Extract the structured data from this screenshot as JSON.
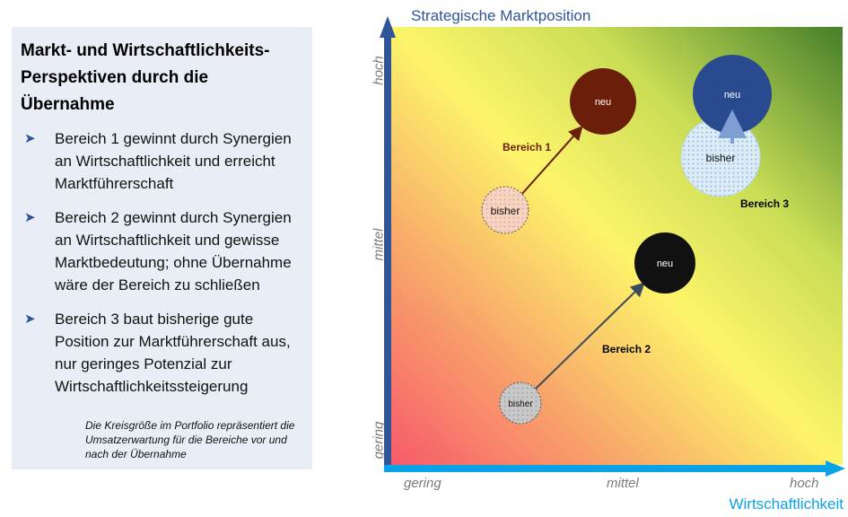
{
  "panel": {
    "title": "Markt- und Wirtschaftlichkeits-Perspektiven durch die Übernahme",
    "bullets": [
      "Bereich 1 gewinnt durch Synergien an Wirtschaftlichkeit und erreicht Marktführerschaft",
      "Bereich 2 gewinnt durch Synergien an Wirtschaftlichkeit und gewisse Marktbedeutung; ohne Übernahme wäre der Bereich zu schließen",
      "Bereich 3 baut bisherige gute Position zur Marktführerschaft aus, nur geringes Potenzial zur Wirtschaftlichkeitssteigerung"
    ],
    "note": "Die Kreisgröße im Portfolio repräsentiert die Umsatzerwartung für die Bereiche vor und nach der Übernahme",
    "bullet_icon": "arrowhead-bullet-icon"
  },
  "axes": {
    "y_title": "Strategische Marktposition",
    "x_title": "Wirtschaftlichkeit",
    "y_ticks": [
      "hoch",
      "mittel",
      "gering"
    ],
    "x_ticks": [
      "gering",
      "mittel",
      "hoch"
    ]
  },
  "colors": {
    "y_axis": "#2f5597",
    "x_axis": "#0aa3e8",
    "bereich1_neu": "#6b1f0a",
    "bereich1_bisher": "#f9d3c0",
    "bereich2_neu": "#111111",
    "bereich2_bisher": "#c8c8c8",
    "bereich3_neu": "#2a4a8f",
    "bereich3_bisher": "#d9ecf7"
  },
  "circles": {
    "b1_neu": "neu",
    "b1_bisher": "bisher",
    "b2_neu": "neu",
    "b2_bisher": "bisher",
    "b3_neu": "neu",
    "b3_bisher": "bisher"
  },
  "labels": {
    "bereich1": "Bereich 1",
    "bereich2": "Bereich 2",
    "bereich3": "Bereich 3"
  }
}
